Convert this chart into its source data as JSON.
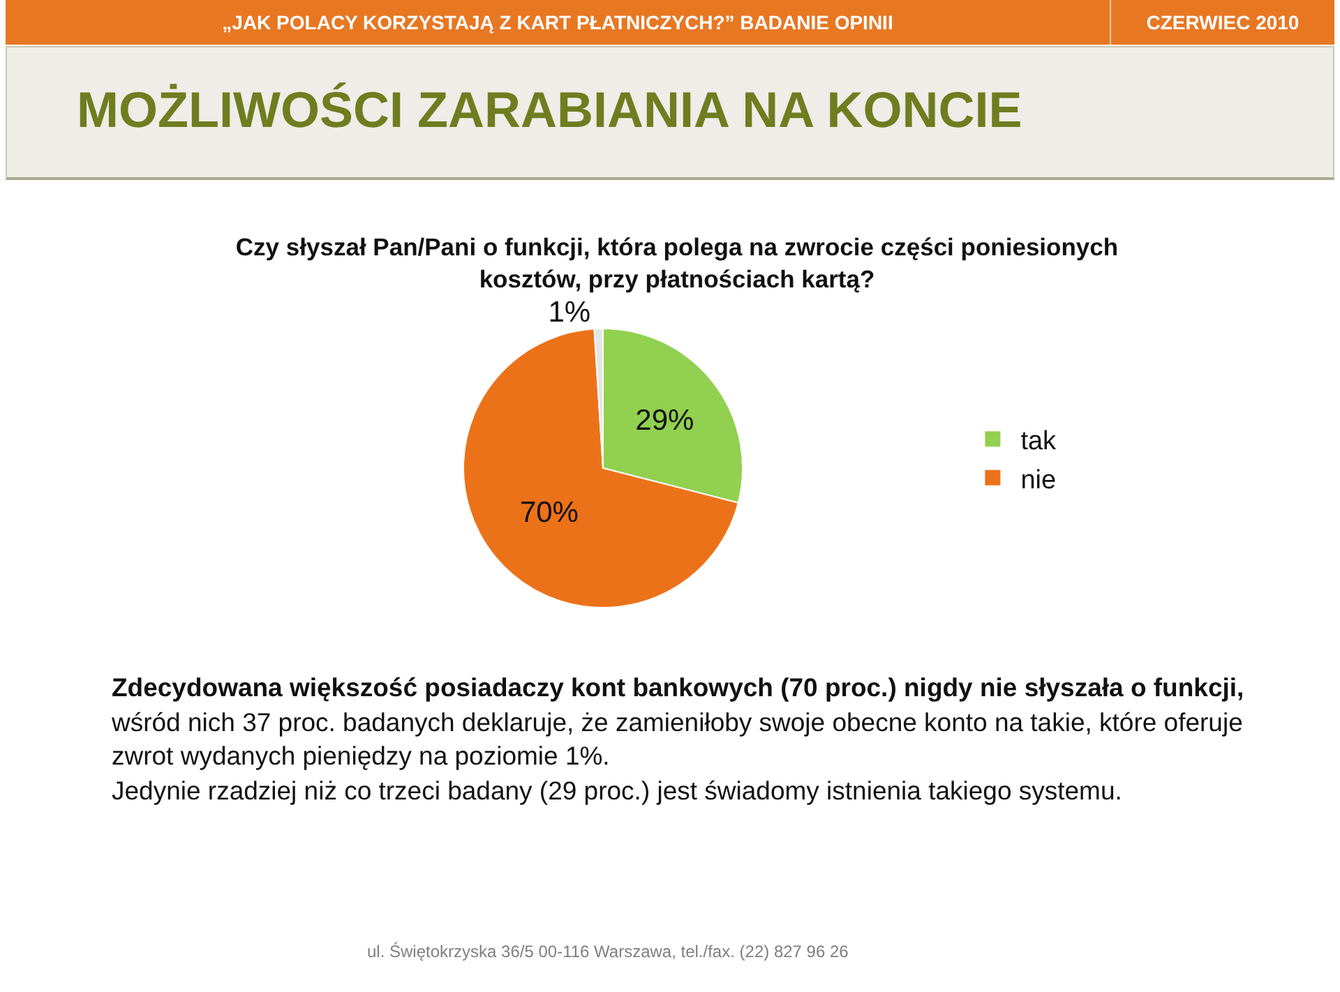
{
  "chart_data": {
    "type": "pie",
    "title": "MOŻLIWOŚCI ZARABIANIA NA KONCIE",
    "subtitle": "Czy słyszał Pan/Pani o funkcji, która polega na zwrocie części poniesionych kosztów, przy płatnościach kartą?",
    "categories": [
      "tak",
      "nie",
      null
    ],
    "values": [
      29,
      70,
      1
    ],
    "colors": [
      "#92d050",
      "#ec7219",
      "#e6e6e6"
    ],
    "value_labels": [
      "29%",
      "70%",
      "1%"
    ],
    "legend": "right",
    "annotations": [
      "„JAK POLACY KORZYSTAJĄ Z KART PŁATNICZYCH?” BADANIE OPINII",
      "CZERWIEC 2010",
      "Zdecydowana większość posiadaczy kont bankowych (70 proc.) nigdy nie słyszała o funkcji,",
      "wśród nich 37 proc.  badanych deklaruje, że zamieniłoby swoje obecne konto na takie, które oferuje zwrot wydanych pieniędzy na poziomie 1%.",
      "Jedynie rzadziej niż co trzeci badany (29 proc.) jest świadomy istnienia takiego systemu.",
      "ul. Świętokrzyska 36/5 00-116 Warszawa, tel./fax. (22) 827 96 26"
    ]
  }
}
